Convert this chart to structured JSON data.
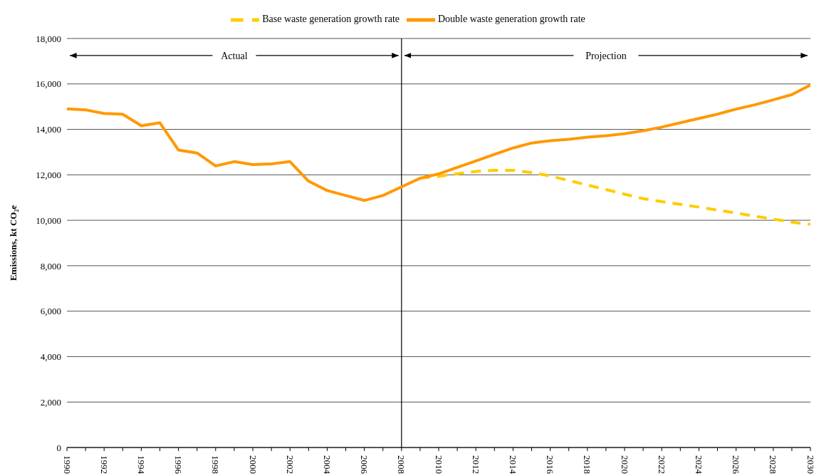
{
  "chart_data": {
    "type": "line",
    "ylabel": "Emissions, kt CO₂e",
    "x": [
      1990,
      1991,
      1992,
      1993,
      1994,
      1995,
      1996,
      1997,
      1998,
      1999,
      2000,
      2001,
      2002,
      2003,
      2004,
      2005,
      2006,
      2007,
      2008,
      2009,
      2010,
      2011,
      2012,
      2013,
      2014,
      2015,
      2016,
      2017,
      2018,
      2019,
      2020,
      2021,
      2022,
      2023,
      2024,
      2025,
      2026,
      2027,
      2028,
      2029,
      2030
    ],
    "series": [
      {
        "name": "Base waste generation growth rate",
        "color": "#ffcc00",
        "line_style": "dashed",
        "values": [
          null,
          null,
          null,
          null,
          null,
          null,
          null,
          null,
          null,
          null,
          null,
          null,
          null,
          null,
          null,
          null,
          null,
          null,
          null,
          11850,
          11930,
          12050,
          12150,
          12200,
          12200,
          12100,
          11950,
          11750,
          11550,
          11350,
          11150,
          10950,
          10820,
          10700,
          10580,
          10450,
          10320,
          10180,
          10050,
          9920,
          9820
        ]
      },
      {
        "name": "Double waste generation growth rate",
        "color": "#ff9900",
        "line_style": "solid",
        "values": [
          14900,
          14860,
          14700,
          14670,
          14160,
          14290,
          13090,
          12960,
          12390,
          12580,
          12450,
          12480,
          12580,
          11720,
          11310,
          11090,
          10870,
          11090,
          11470,
          11850,
          12040,
          12330,
          12610,
          12900,
          13180,
          13400,
          13500,
          13560,
          13660,
          13720,
          13810,
          13940,
          14100,
          14290,
          14480,
          14670,
          14890,
          15080,
          15300,
          15530,
          15950
        ]
      }
    ],
    "xlim": [
      1990,
      2030
    ],
    "xticks": [
      1990,
      1992,
      1994,
      1996,
      1998,
      2000,
      2002,
      2004,
      2006,
      2008,
      2010,
      2012,
      2014,
      2016,
      2018,
      2020,
      2022,
      2024,
      2026,
      2028,
      2030
    ],
    "ylim": [
      0,
      18000
    ],
    "yticks": [
      0,
      {
        "value": 2000,
        "label": "2,000"
      },
      {
        "value": 4000,
        "label": "4,000"
      },
      {
        "value": 6000,
        "label": "6,000"
      },
      {
        "value": 8000,
        "label": "8,000"
      },
      {
        "value": 10000,
        "label": "10,000"
      },
      {
        "value": 12000,
        "label": "12,000"
      },
      {
        "value": 14000,
        "label": "14,000"
      },
      {
        "value": 16000,
        "label": "16,000"
      },
      {
        "value": 18000,
        "label": "18,000"
      }
    ],
    "ref_lines": [
      {
        "axis": "x",
        "value": 2008,
        "color": "#000000"
      }
    ],
    "annotations": [
      {
        "text": "Actual",
        "x": 2008,
        "y": 17250
      },
      {
        "text": "Projection",
        "x": 2008,
        "y": 17250
      }
    ],
    "grid": "y",
    "legend": "top",
    "marker": "none"
  }
}
